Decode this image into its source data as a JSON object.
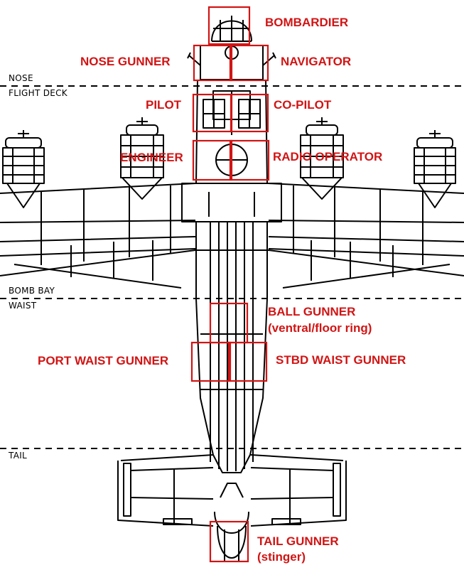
{
  "sections": {
    "nose": "NOSE",
    "flight_deck": "FLIGHT DECK",
    "bomb_bay": "BOMB BAY",
    "waist": "WAIST",
    "tail": "TAIL"
  },
  "crew": {
    "bombardier": "BOMBARDIER",
    "nose_gunner": "NOSE GUNNER",
    "navigator": "NAVIGATOR",
    "pilot": "PILOT",
    "co_pilot": "CO-PILOT",
    "engineer": "ENGINEER",
    "radio_operator": "RADIO OPERATOR",
    "ball_gunner": "BALL GUNNER",
    "ball_gunner_note": "(ventral/floor ring)",
    "port_waist_gunner": "PORT WAIST GUNNER",
    "stbd_waist_gunner": "STBD WAIST GUNNER",
    "tail_gunner": "TAIL GUNNER",
    "tail_gunner_note": "(stinger)"
  },
  "colors": {
    "highlight": "#d21414",
    "line": "#000000",
    "background": "#ffffff"
  }
}
